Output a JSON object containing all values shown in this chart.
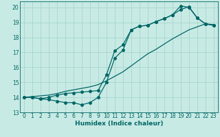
{
  "xlabel": "Humidex (Indice chaleur)",
  "xlim": [
    -0.5,
    23.5
  ],
  "ylim": [
    13,
    20.4
  ],
  "xticks": [
    0,
    1,
    2,
    3,
    4,
    5,
    6,
    7,
    8,
    9,
    10,
    11,
    12,
    13,
    14,
    15,
    16,
    17,
    18,
    19,
    20,
    21,
    22,
    23
  ],
  "yticks": [
    13,
    14,
    15,
    16,
    17,
    18,
    19,
    20
  ],
  "bg_color": "#c8eae4",
  "line_color": "#006666",
  "grid_color": "#aad8d0",
  "line1_x": [
    0,
    1,
    2,
    3,
    4,
    5,
    6,
    7,
    8,
    9,
    10,
    11,
    12,
    13,
    14,
    15,
    16,
    17,
    18,
    19,
    20,
    21,
    22,
    23
  ],
  "line1_y": [
    14.0,
    14.0,
    13.9,
    13.85,
    13.75,
    13.65,
    13.65,
    13.5,
    13.65,
    14.0,
    15.0,
    16.6,
    17.15,
    18.5,
    18.75,
    18.8,
    19.05,
    19.25,
    19.5,
    20.1,
    20.0,
    19.3,
    18.9,
    18.8
  ],
  "line2_x": [
    0,
    1,
    2,
    3,
    4,
    5,
    6,
    7,
    8,
    9,
    10,
    11,
    12,
    13,
    14,
    15,
    16,
    17,
    18,
    19,
    20,
    21,
    22,
    23
  ],
  "line2_y": [
    14.0,
    14.0,
    13.9,
    14.0,
    14.15,
    14.25,
    14.3,
    14.35,
    14.4,
    14.45,
    15.5,
    17.1,
    17.5,
    18.5,
    18.75,
    18.8,
    19.05,
    19.25,
    19.5,
    19.85,
    20.05,
    19.3,
    18.9,
    18.8
  ],
  "line3_x": [
    0,
    1,
    2,
    3,
    4,
    5,
    6,
    7,
    8,
    9,
    10,
    11,
    12,
    13,
    14,
    15,
    16,
    17,
    18,
    19,
    20,
    21,
    22,
    23
  ],
  "line3_y": [
    14.0,
    14.05,
    14.1,
    14.15,
    14.25,
    14.4,
    14.5,
    14.6,
    14.7,
    14.85,
    15.1,
    15.4,
    15.7,
    16.1,
    16.5,
    16.9,
    17.2,
    17.55,
    17.9,
    18.2,
    18.5,
    18.7,
    18.9,
    18.85
  ]
}
